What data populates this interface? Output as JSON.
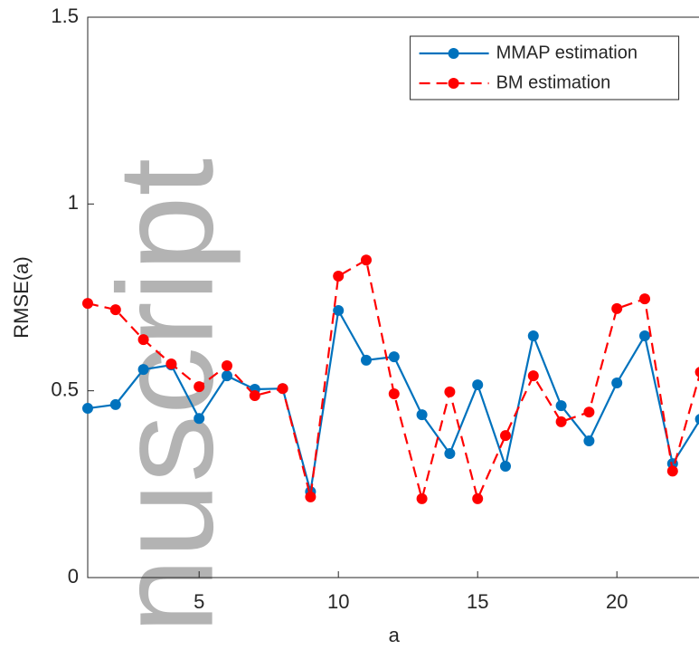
{
  "chart_data": {
    "type": "line",
    "xlabel": "a",
    "ylabel": "RMSE(a)",
    "watermark": "nuscript",
    "x": [
      1,
      2,
      3,
      4,
      5,
      6,
      7,
      8,
      9,
      10,
      11,
      12,
      13,
      14,
      15,
      16,
      17,
      18,
      19,
      20,
      21,
      22,
      23
    ],
    "series": [
      {
        "name": "MMAP estimation",
        "color": "#0072bd",
        "dash": false,
        "values": [
          0.453,
          0.463,
          0.557,
          0.569,
          0.426,
          0.54,
          0.504,
          0.506,
          0.23,
          0.715,
          0.582,
          0.591,
          0.436,
          0.332,
          0.516,
          0.298,
          0.647,
          0.46,
          0.366,
          0.521,
          0.647,
          0.305,
          0.424
        ]
      },
      {
        "name": "BM estimation",
        "color": "#ff0000",
        "dash": true,
        "values": [
          0.734,
          0.717,
          0.637,
          0.572,
          0.511,
          0.567,
          0.487,
          0.506,
          0.216,
          0.807,
          0.85,
          0.492,
          0.211,
          0.497,
          0.211,
          0.38,
          0.54,
          0.417,
          0.443,
          0.72,
          0.746,
          0.285,
          0.55
        ]
      }
    ],
    "xlim": [
      1,
      23
    ],
    "ylim": [
      0,
      1.5
    ],
    "xticks": [
      5,
      10,
      15,
      20
    ],
    "yticks": [
      0,
      0.5,
      1,
      1.5
    ],
    "legend": "upper right",
    "grid": false
  }
}
